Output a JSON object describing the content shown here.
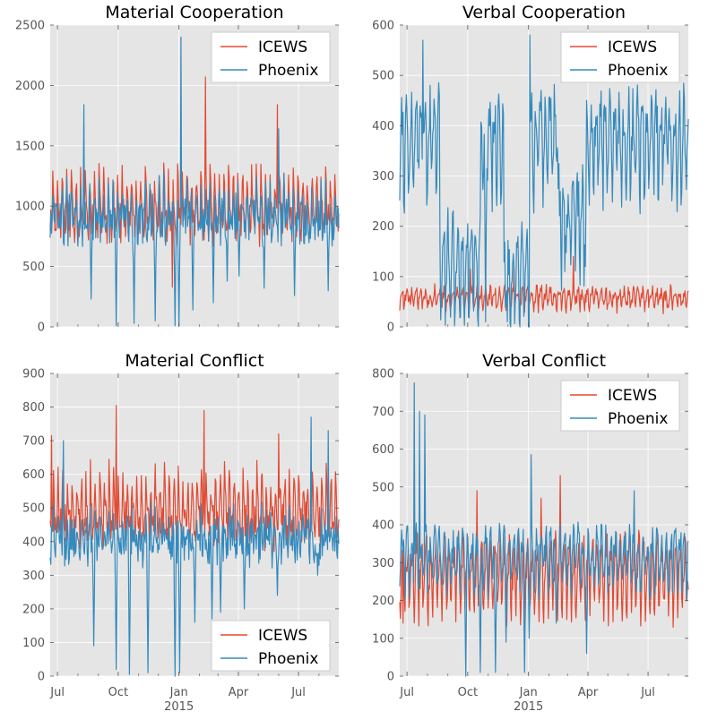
{
  "figure_year_label": "2015",
  "x_month_labels": [
    "Jul",
    "Oct",
    "Jan",
    "Apr",
    "Jul"
  ],
  "colors": {
    "icews": "#E24A33",
    "phoenix": "#348ABD",
    "panel_bg": "#E5E5E5",
    "grid": "#FFFFFF"
  },
  "chart_data": [
    {
      "type": "line",
      "title": "Material Cooperation",
      "xlabel": "",
      "ylabel": "",
      "x_range": [
        "2014-06-20",
        "2015-08-31"
      ],
      "ylim": [
        0,
        2500
      ],
      "yticks": [
        0,
        500,
        1000,
        1500,
        2000,
        2500
      ],
      "legend_position": "top-right",
      "series": [
        {
          "name": "ICEWS",
          "mean": 1050,
          "amplitude": 320,
          "noise": 120,
          "spikes": [
            [
              "2015-02-10",
              2070
            ],
            [
              "2015-05-30",
              1840
            ],
            [
              "2014-12-22",
              330
            ]
          ]
        },
        {
          "name": "Phoenix",
          "mean": 1000,
          "amplitude": 330,
          "noise": 160,
          "spikes": [
            [
              "2015-01-04",
              2400
            ],
            [
              "2014-08-10",
              1840
            ],
            [
              "2015-06-01",
              1640
            ]
          ],
          "dropouts": [
            [
              "2014-08-21",
              230
            ],
            [
              "2014-09-28",
              10
            ],
            [
              "2014-10-25",
              30
            ],
            [
              "2014-11-26",
              50
            ],
            [
              "2014-12-26",
              10
            ],
            [
              "2015-01-01",
              10
            ],
            [
              "2015-01-22",
              140
            ],
            [
              "2015-02-22",
              200
            ],
            [
              "2015-03-15",
              380
            ],
            [
              "2015-04-02",
              420
            ],
            [
              "2015-05-10",
              320
            ],
            [
              "2015-06-25",
              260
            ],
            [
              "2015-08-15",
              300
            ]
          ]
        }
      ]
    },
    {
      "type": "line",
      "title": "Verbal Cooperation",
      "xlabel": "",
      "ylabel": "",
      "x_range": [
        "2014-06-20",
        "2015-08-31"
      ],
      "ylim": [
        0,
        600
      ],
      "yticks": [
        0,
        100,
        200,
        300,
        400,
        500,
        600
      ],
      "legend_position": "top-right",
      "series": [
        {
          "name": "ICEWS",
          "mean": 62,
          "amplitude": 18,
          "noise": 14,
          "spikes": [
            [
              "2014-10-05",
              115
            ],
            [
              "2015-03-10",
              140
            ],
            [
              "2014-12-10",
              120
            ]
          ]
        },
        {
          "name": "Phoenix",
          "mean": 390,
          "amplitude": 80,
          "noise": 55,
          "segments": [
            [
              "2014-08-20",
              "2014-10-20",
              150
            ],
            [
              "2014-11-25",
              "2015-01-03",
              110
            ],
            [
              "2015-02-15",
              "2015-03-28",
              230
            ]
          ],
          "spikes": [
            [
              "2014-07-25",
              570
            ],
            [
              "2015-01-03",
              580
            ],
            [
              "2015-04-25",
              430
            ]
          ],
          "dropouts": [
            [
              "2014-08-22",
              50
            ],
            [
              "2014-09-20",
              20
            ],
            [
              "2014-10-02",
              20
            ],
            [
              "2014-10-28",
              10
            ],
            [
              "2014-11-30",
              10
            ],
            [
              "2014-12-18",
              10
            ],
            [
              "2015-02-25",
              110
            ],
            [
              "2015-03-28",
              120
            ]
          ]
        }
      ]
    },
    {
      "type": "line",
      "title": "Material Conflict",
      "xlabel": "",
      "ylabel": "",
      "x_range": [
        "2014-06-20",
        "2015-08-31"
      ],
      "ylim": [
        0,
        900
      ],
      "yticks": [
        0,
        100,
        200,
        300,
        400,
        500,
        600,
        700,
        800,
        900
      ],
      "legend_position": "bottom-right",
      "series": [
        {
          "name": "ICEWS",
          "mean": 520,
          "amplitude": 120,
          "noise": 55,
          "spikes": [
            [
              "2014-09-28",
              805
            ],
            [
              "2014-06-22",
              715
            ],
            [
              "2015-02-08",
              790
            ],
            [
              "2015-06-01",
              720
            ]
          ]
        },
        {
          "name": "Phoenix",
          "mean": 430,
          "amplitude": 90,
          "noise": 60,
          "spikes": [
            [
              "2014-07-10",
              700
            ],
            [
              "2015-07-20",
              770
            ],
            [
              "2015-08-15",
              730
            ]
          ],
          "dropouts": [
            [
              "2014-08-25",
              90
            ],
            [
              "2014-09-28",
              20
            ],
            [
              "2014-10-18",
              5
            ],
            [
              "2014-11-15",
              10
            ],
            [
              "2014-12-26",
              0
            ],
            [
              "2015-01-02",
              10
            ],
            [
              "2015-01-25",
              160
            ],
            [
              "2015-02-20",
              170
            ],
            [
              "2015-03-05",
              190
            ],
            [
              "2015-04-10",
              200
            ],
            [
              "2015-05-30",
              240
            ],
            [
              "2015-07-30",
              300
            ]
          ]
        }
      ]
    },
    {
      "type": "line",
      "title": "Verbal Conflict",
      "xlabel": "",
      "ylabel": "",
      "x_range": [
        "2014-06-20",
        "2015-08-31"
      ],
      "ylim": [
        0,
        800
      ],
      "yticks": [
        0,
        100,
        200,
        300,
        400,
        500,
        600,
        700,
        800
      ],
      "legend_position": "top-right",
      "series": [
        {
          "name": "ICEWS",
          "mean": 290,
          "amplitude": 90,
          "noise": 45,
          "spikes": [
            [
              "2014-10-15",
              490
            ],
            [
              "2015-01-20",
              470
            ],
            [
              "2015-02-18",
              530
            ],
            [
              "2014-06-25",
              140
            ]
          ]
        },
        {
          "name": "Phoenix",
          "mean": 330,
          "amplitude": 60,
          "noise": 45,
          "spikes": [
            [
              "2014-07-12",
              775
            ],
            [
              "2014-07-20",
              700
            ],
            [
              "2014-07-28",
              690
            ],
            [
              "2015-01-05",
              585
            ],
            [
              "2015-06-10",
              490
            ]
          ],
          "dropouts": [
            [
              "2014-09-28",
              0
            ],
            [
              "2014-10-20",
              10
            ],
            [
              "2014-11-12",
              10
            ],
            [
              "2014-11-28",
              90
            ],
            [
              "2014-12-26",
              10
            ],
            [
              "2015-01-02",
              100
            ],
            [
              "2015-03-30",
              60
            ],
            [
              "2015-02-12",
              140
            ]
          ]
        }
      ]
    }
  ]
}
